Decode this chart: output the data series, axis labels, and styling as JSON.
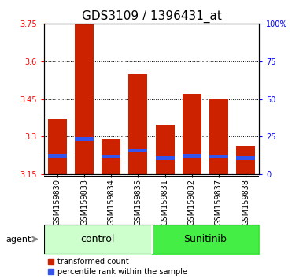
{
  "title": "GDS3109 / 1396431_at",
  "samples": [
    "GSM159830",
    "GSM159833",
    "GSM159834",
    "GSM159835",
    "GSM159831",
    "GSM159832",
    "GSM159837",
    "GSM159838"
  ],
  "red_values": [
    3.37,
    3.75,
    3.29,
    3.55,
    3.35,
    3.47,
    3.45,
    3.265
  ],
  "blue_values": [
    3.225,
    3.29,
    3.22,
    3.245,
    3.215,
    3.225,
    3.22,
    3.215
  ],
  "ymin": 3.15,
  "ymax": 3.75,
  "yticks": [
    3.15,
    3.3,
    3.45,
    3.6,
    3.75
  ],
  "ytick_labels": [
    "3.15",
    "3.3",
    "3.45",
    "3.6",
    "3.75"
  ],
  "right_ytick_labels": [
    "0",
    "25",
    "50",
    "75",
    "100%"
  ],
  "bar_color_red": "#cc2200",
  "bar_color_blue": "#3355ee",
  "bar_width": 0.7,
  "bg_color": "#ffffff",
  "control_color": "#ccffcc",
  "sunitinib_color": "#44ee44",
  "agent_label": "agent",
  "legend1": "transformed count",
  "legend2": "percentile rank within the sample",
  "title_fontsize": 11,
  "tick_fontsize": 7,
  "group_fontsize": 9,
  "legend_fontsize": 7,
  "agent_fontsize": 8
}
